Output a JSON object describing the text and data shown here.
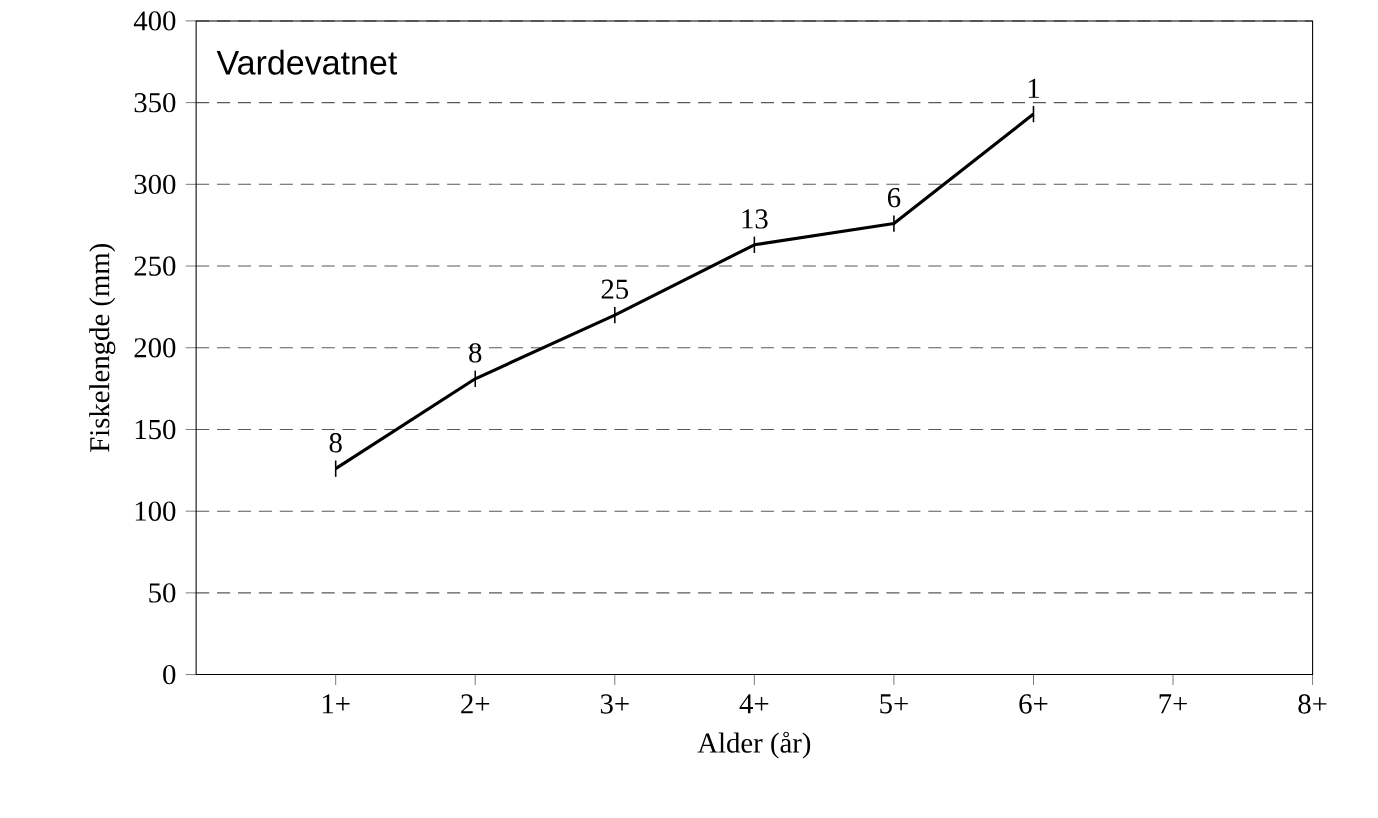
{
  "chart_data": {
    "type": "line",
    "xlabel": "Alder (år)",
    "ylabel": "Fiskelengde (mm)",
    "categories": [
      "1+",
      "2+",
      "3+",
      "4+",
      "5+",
      "6+",
      "7+",
      "8+"
    ],
    "values": [
      126,
      181,
      220,
      263,
      276,
      343,
      null,
      null
    ],
    "errors": [
      5,
      5,
      5,
      5,
      5,
      5,
      null,
      null
    ],
    "color": "#000000",
    "marker": "none",
    "line_style": "solid",
    "grid": "y",
    "ylim": [
      0,
      400
    ],
    "yticks": [
      0,
      50,
      100,
      150,
      200,
      250,
      300,
      350,
      400
    ],
    "annotations": [
      "Vardevatnet",
      {
        "text": "8",
        "x": "1+",
        "y": 126
      },
      {
        "text": "8",
        "x": "2+",
        "y": 181
      },
      {
        "text": "25",
        "x": "3+",
        "y": 220
      },
      {
        "text": "13",
        "x": "4+",
        "y": 263
      },
      {
        "text": "6",
        "x": "5+",
        "y": 276
      },
      {
        "text": "1",
        "x": "6+",
        "y": 343
      }
    ]
  }
}
